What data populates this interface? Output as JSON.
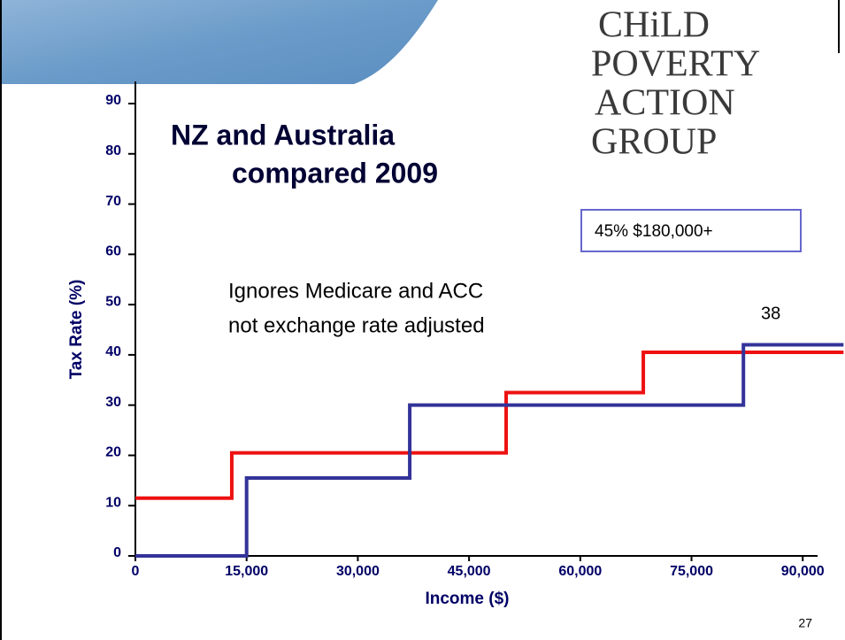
{
  "chart_data": {
    "type": "line",
    "step": "post",
    "title": [
      "NZ and Australia",
      "compared 2009"
    ],
    "x_label": "Income ($)",
    "y_label": "Tax Rate (%)",
    "xlim": [
      0,
      92000
    ],
    "ylim": [
      0,
      90
    ],
    "xticks": [
      0,
      {
        "value": 15000,
        "label": "15,000"
      },
      {
        "value": 30000,
        "label": "30,000"
      },
      {
        "value": 45000,
        "label": "45,000"
      },
      {
        "value": 60000,
        "label": "60,000"
      },
      {
        "value": 75000,
        "label": "75,000"
      },
      {
        "value": 90000,
        "label": "90,000"
      }
    ],
    "yticks": [
      0,
      10,
      20,
      30,
      40,
      50,
      60,
      70,
      80,
      90
    ],
    "series": [
      {
        "color": "#ee1111",
        "x": [
          0,
          13000,
          50000,
          68500,
          95500
        ],
        "values": [
          11.5,
          20.5,
          32.5,
          40.5,
          40.5
        ]
      },
      {
        "color": "#333399",
        "x": [
          0,
          15000,
          37000,
          82000,
          95500
        ],
        "values": [
          0,
          15.5,
          30,
          42,
          42
        ]
      }
    ],
    "annotations": [
      "Ignores Medicare and ACC",
      "not exchange rate adjusted",
      "38",
      "45% $180,000+"
    ]
  },
  "logo": [
    "CHiLD",
    "POVERTY",
    "ACTION",
    "GROUP"
  ],
  "page_number": "27"
}
